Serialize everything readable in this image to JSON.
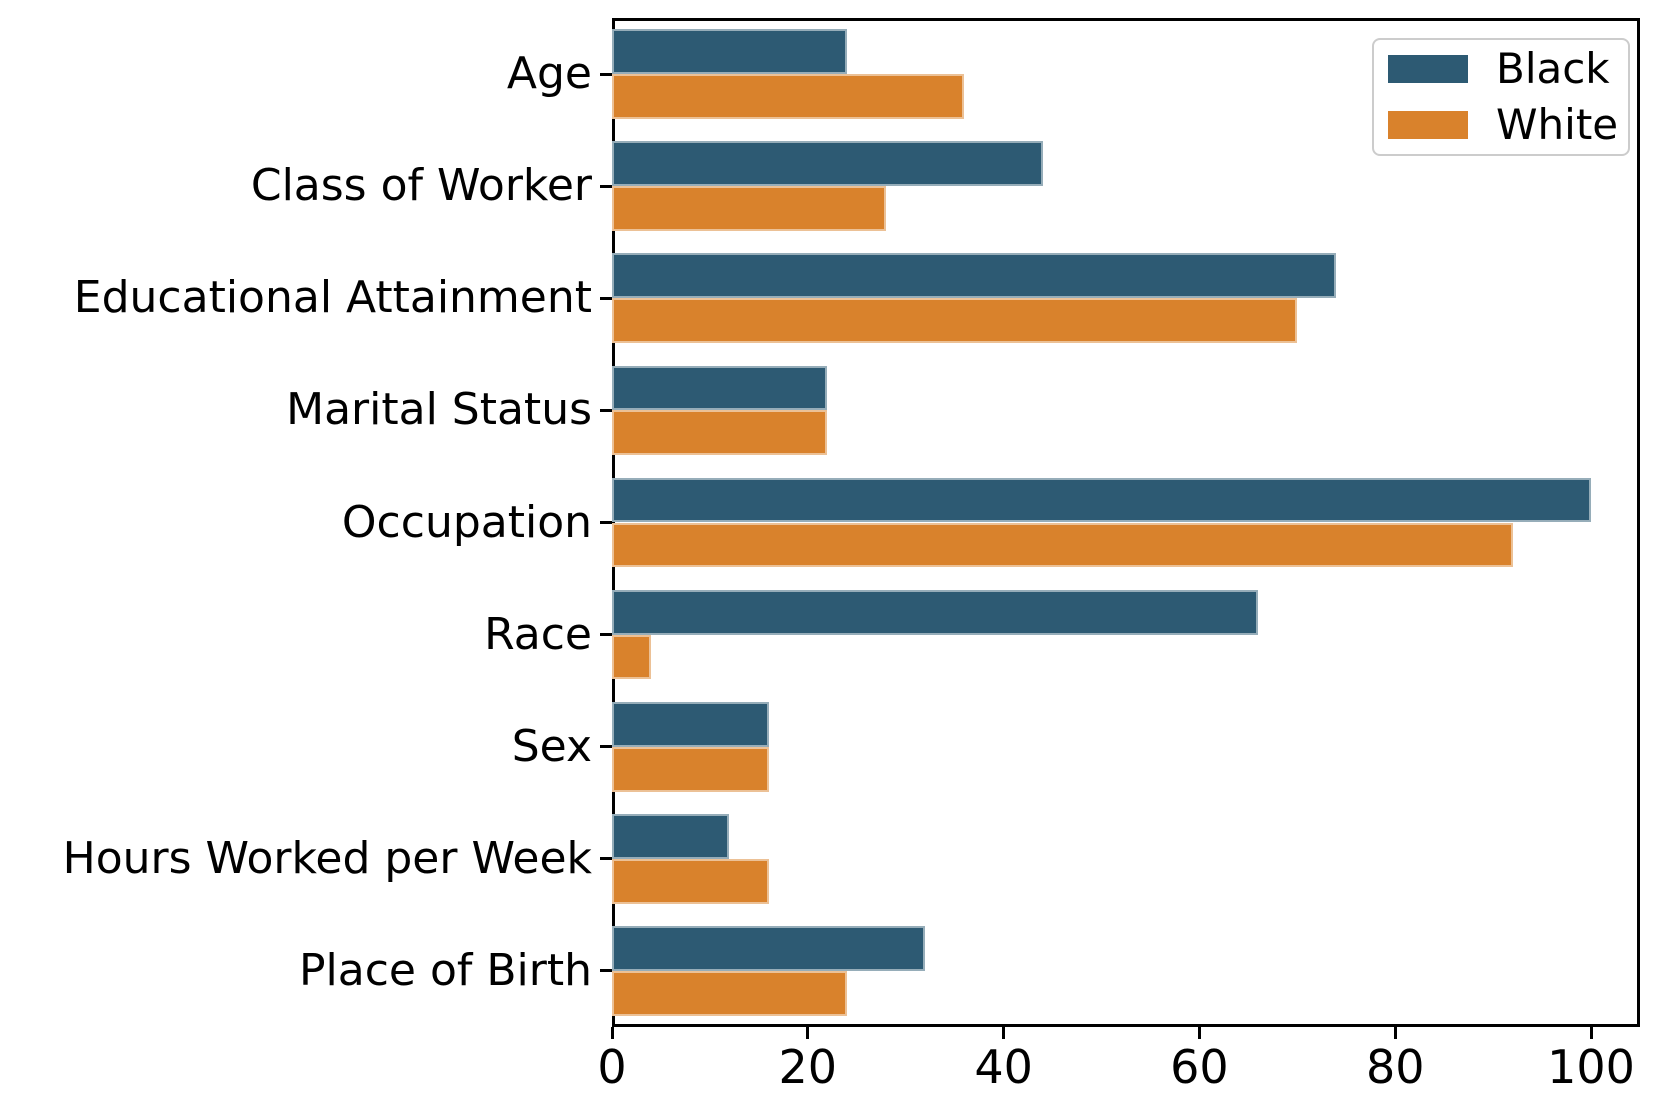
{
  "chart_data": {
    "type": "bar",
    "orientation": "horizontal",
    "title": "",
    "xlabel": "",
    "ylabel": "",
    "categories": [
      "Age",
      "Class of Worker",
      "Educational Attainment",
      "Marital Status",
      "Occupation",
      "Race",
      "Sex",
      "Hours Worked per Week",
      "Place of Birth"
    ],
    "series": [
      {
        "name": "Black",
        "color": "#2d5a73",
        "values": [
          24,
          44,
          74,
          22,
          100,
          66,
          16,
          12,
          32
        ]
      },
      {
        "name": "White",
        "color": "#d9822c",
        "values": [
          36,
          28,
          70,
          22,
          92,
          4,
          16,
          16,
          24
        ]
      }
    ],
    "xlim": [
      0,
      105
    ],
    "xticks": [
      0,
      20,
      40,
      60,
      80,
      100
    ],
    "grid": false,
    "legend": {
      "position": "upper right",
      "entries": [
        "Black",
        "White"
      ],
      "border_color": "#cccccc"
    },
    "colors": {
      "axis": "#000000",
      "background": "#ffffff",
      "text": "#000000"
    }
  }
}
